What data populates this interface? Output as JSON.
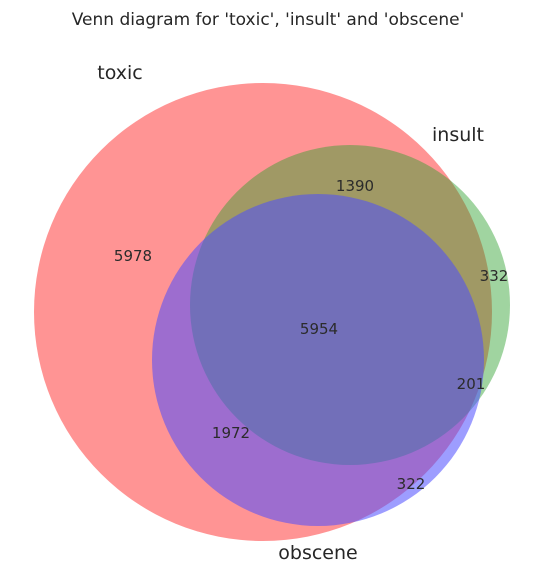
{
  "title": "Venn diagram for 'toxic', 'insult' and 'obscene'",
  "sets": [
    {
      "key": "toxic",
      "label": "toxic",
      "color": "#ff4d4d"
    },
    {
      "key": "insult",
      "label": "insult",
      "color": "#2ca02c"
    },
    {
      "key": "obscene",
      "label": "obscene",
      "color": "#4d4dff"
    }
  ],
  "regions": {
    "toxic_only": "5978",
    "toxic_insult": "1390",
    "insult_only": "332",
    "all_three": "5954",
    "insult_obscene": "201",
    "toxic_obscene": "1972",
    "obscene_only": "322"
  },
  "chart_data": {
    "type": "venn3",
    "title": "Venn diagram for 'toxic', 'insult' and 'obscene'",
    "sets": [
      "toxic",
      "insult",
      "obscene"
    ],
    "subsets": {
      "toxic": 5978,
      "insult": 332,
      "obscene": 322,
      "toxic&insult": 1390,
      "toxic&obscene": 1972,
      "insult&obscene": 201,
      "toxic&insult&obscene": 5954
    }
  }
}
